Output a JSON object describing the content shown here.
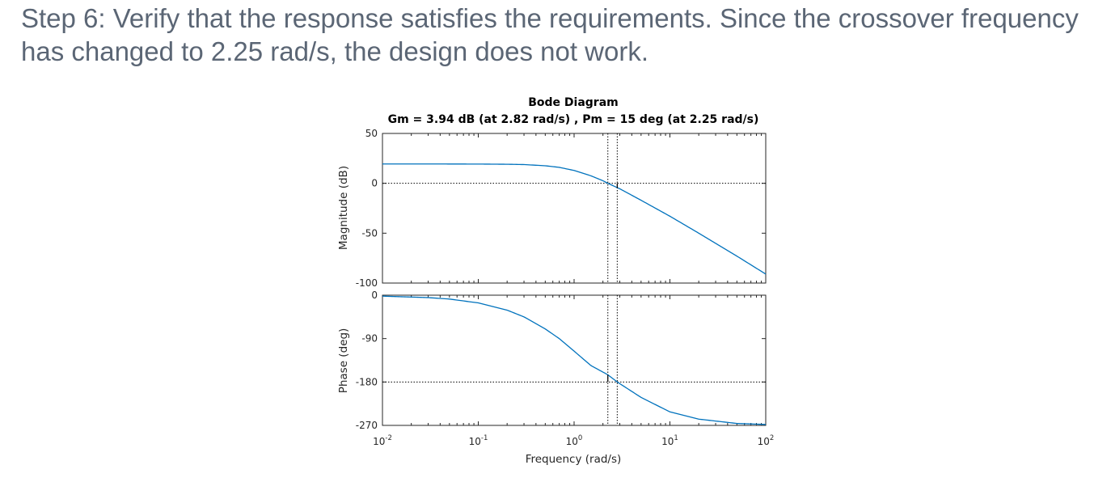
{
  "step": {
    "line1": "Step 6: Verify that the response satisfies the requirements. Since the crossover frequency",
    "line2": "has changed to 2.25 rad/s, the design does not work."
  },
  "chart_data": {
    "type": "line",
    "title": "Bode Diagram",
    "subtitle": "Gm = 3.94 dB (at 2.82 rad/s) ,  Pm = 15 deg (at 2.25 rad/s)",
    "xlabel": "Frequency  (rad/s)",
    "xscale": "log",
    "xlim": [
      0.01,
      100
    ],
    "x_ticks": [
      {
        "base": "10",
        "exp": "-2",
        "value": 0.01
      },
      {
        "base": "10",
        "exp": "-1",
        "value": 0.1
      },
      {
        "base": "10",
        "exp": "0",
        "value": 1
      },
      {
        "base": "10",
        "exp": "1",
        "value": 10
      },
      {
        "base": "10",
        "exp": "2",
        "value": 100
      }
    ],
    "grid": false,
    "colors": {
      "series": "#0072bd",
      "axes": "#262626",
      "reference": "#000000"
    },
    "panels": [
      {
        "name": "magnitude",
        "ylabel": "Magnitude (dB)",
        "ylim": [
          -100,
          50
        ],
        "y_ticks": [
          "50",
          "0",
          "-50",
          "-100"
        ],
        "y_tick_values": [
          50,
          0,
          -50,
          -100
        ],
        "reference_line_y": 0,
        "series": {
          "x": [
            0.01,
            0.03,
            0.1,
            0.2,
            0.3,
            0.5,
            0.7,
            1,
            1.5,
            2,
            2.25,
            3,
            5,
            10,
            20,
            50,
            100
          ],
          "y": [
            19.4,
            19.4,
            19.3,
            19.1,
            18.8,
            17.6,
            16.0,
            12.9,
            7.5,
            2.6,
            0,
            -5.5,
            -17,
            -33,
            -50,
            -73,
            -91
          ]
        }
      },
      {
        "name": "phase",
        "ylabel": "Phase (deg)",
        "ylim": [
          -270,
          0
        ],
        "y_ticks": [
          "0",
          "-90",
          "-180",
          "-270"
        ],
        "y_tick_values": [
          0,
          -90,
          -180,
          -270
        ],
        "reference_line_y": -180,
        "series": {
          "x": [
            0.01,
            0.03,
            0.05,
            0.1,
            0.2,
            0.3,
            0.5,
            0.7,
            1,
            1.5,
            2.25,
            2.82,
            5,
            10,
            20,
            50,
            100
          ],
          "y": [
            -2,
            -5,
            -8,
            -16,
            -31,
            -45,
            -70,
            -90,
            -116,
            -146,
            -165,
            -180,
            -212,
            -242,
            -257,
            -266,
            -268
          ]
        }
      }
    ],
    "markers": [
      {
        "name": "phase-crossover",
        "x": 2.82,
        "value": 3.94,
        "unit": "dB"
      },
      {
        "name": "gain-crossover",
        "x": 2.25,
        "value": 15,
        "unit": "deg"
      }
    ]
  }
}
